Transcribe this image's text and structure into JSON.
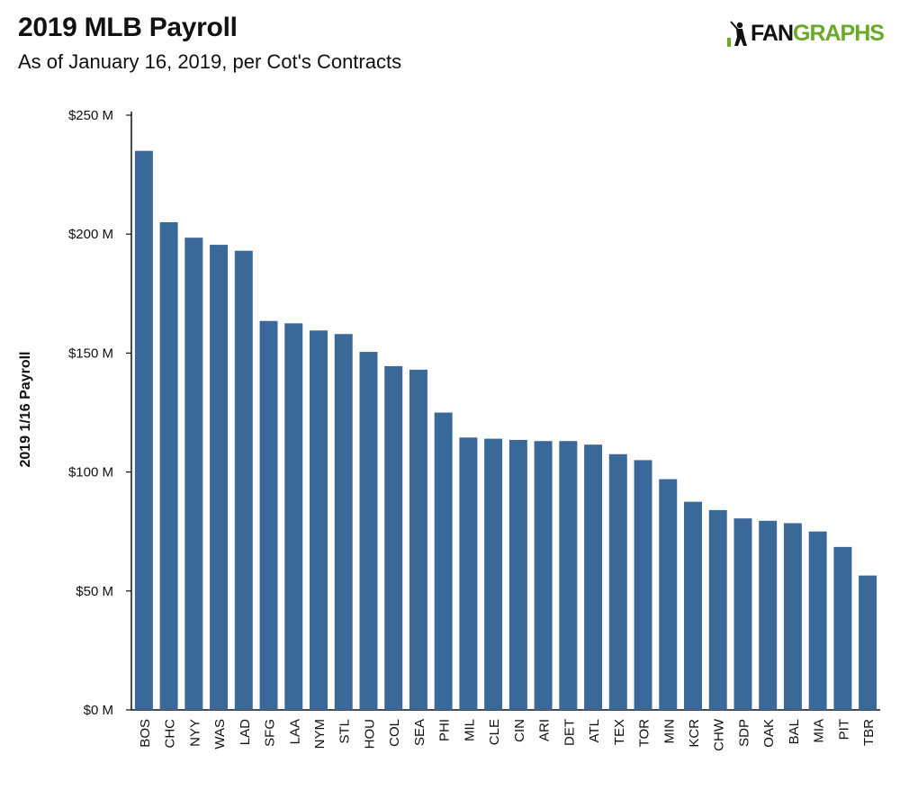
{
  "header": {
    "title": "2019 MLB Payroll",
    "subtitle": "As of January 16, 2019, per Cot's Contracts"
  },
  "logo": {
    "text_left": "FAN",
    "text_right": "GRAPHS",
    "icon": "batter-silhouette-icon",
    "colors": {
      "dark": "#111111",
      "green": "#6aaa2a"
    }
  },
  "chart_data": {
    "type": "bar",
    "title": "2019 MLB Payroll",
    "subtitle": "As of January 16, 2019, per Cot's Contracts",
    "xlabel": "",
    "ylabel": "2019 1/16 Payroll",
    "ylim": [
      0,
      250
    ],
    "yticks": [
      0,
      50,
      100,
      150,
      200,
      250
    ],
    "ytick_labels": [
      "$0 M",
      "$50 M",
      "$100 M",
      "$150 M",
      "$200 M",
      "$250 M"
    ],
    "grid": false,
    "bar_color": "#3a6898",
    "categories": [
      "BOS",
      "CHC",
      "NYY",
      "WAS",
      "LAD",
      "SFG",
      "LAA",
      "NYM",
      "STL",
      "HOU",
      "COL",
      "SEA",
      "PHI",
      "MIL",
      "CLE",
      "CIN",
      "ARI",
      "DET",
      "ATL",
      "TEX",
      "TOR",
      "MIN",
      "KCR",
      "CHW",
      "SDP",
      "OAK",
      "BAL",
      "MIA",
      "PIT",
      "TBR"
    ],
    "values": [
      235,
      205,
      198.5,
      195.5,
      193,
      163.5,
      162.5,
      159.5,
      158,
      150.5,
      144.5,
      143,
      125,
      114.5,
      114,
      113.5,
      113,
      113,
      111.5,
      107.5,
      105,
      97,
      87.5,
      84,
      80.5,
      79.5,
      78.5,
      75,
      68.5,
      56.5
    ]
  }
}
